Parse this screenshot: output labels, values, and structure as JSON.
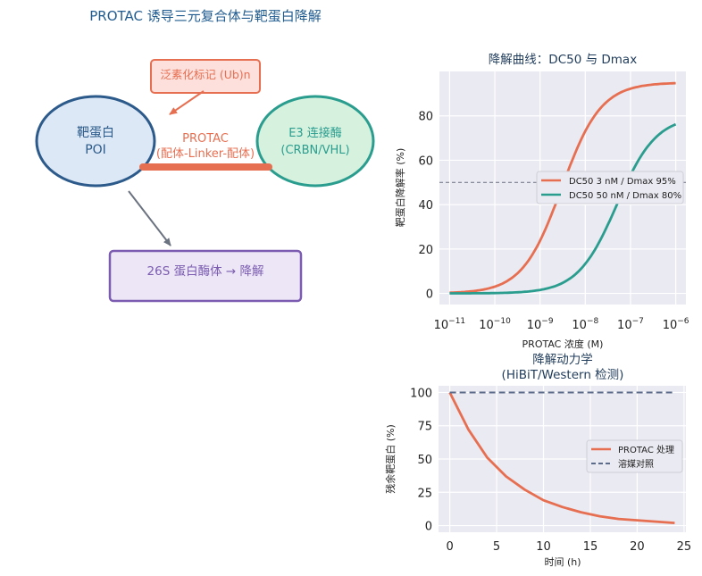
{
  "figure_title": "PROTAC 诱导三元复合体与靶蛋白降解",
  "diagram": {
    "ubiquitin_label": "泛素化标记 (Ub)n",
    "poi_label_1": "靶蛋白",
    "poi_label_2": "POI",
    "e3_label_1": "E3 连接酶",
    "e3_label_2": "(CRBN/VHL)",
    "protac_label_1": "PROTAC",
    "protac_label_2": "(配体-Linker-配体)",
    "proteasome_label": "26S 蛋白酶体 → 降解",
    "colors": {
      "poi_fill": "#dce8f5",
      "poi_stroke": "#2c5a8a",
      "e3_fill": "#d6f2df",
      "e3_stroke": "#2a9d8f",
      "protac": "#e76f51",
      "ub_fill": "#fde0dc",
      "ub_stroke": "#e76f51",
      "proteasome_fill": "#ede6f6",
      "proteasome_stroke": "#7b5cb0",
      "arrow_gray": "#6b7280"
    }
  },
  "chart_data": [
    {
      "type": "line",
      "title": "降解曲线：DC50 与 Dmax",
      "xlabel": "PROTAC 浓度 (M)",
      "ylabel": "靶蛋白降解率 (%)",
      "xscale": "log",
      "xlim": [
        1e-11,
        1e-06
      ],
      "ylim": [
        -5,
        100
      ],
      "xticks": [
        1e-11,
        1e-10,
        1e-09,
        1e-08,
        1e-07,
        1e-06
      ],
      "xtick_labels": [
        {
          "base": "10",
          "exp": "−11"
        },
        {
          "base": "10",
          "exp": "−10"
        },
        {
          "base": "10",
          "exp": "−9"
        },
        {
          "base": "10",
          "exp": "−8"
        },
        {
          "base": "10",
          "exp": "−7"
        },
        {
          "base": "10",
          "exp": "−6"
        }
      ],
      "yticks": [
        0,
        20,
        40,
        60,
        80
      ],
      "ytick_labels": [
        "0",
        "20",
        "40",
        "60",
        "80"
      ],
      "reference_line_y": 50,
      "grid": true,
      "legend_position": "center-right",
      "series": [
        {
          "name": "DC50 3 nM / Dmax 95%",
          "color": "#e76f51",
          "dc50": 3e-09,
          "dmax": 95,
          "hill": 1,
          "x": [
            1e-11,
            1e-10,
            1e-09,
            3e-09,
            1e-08,
            1e-07,
            1e-06
          ],
          "y": [
            0.3,
            3.1,
            23.8,
            47.5,
            73.1,
            92.2,
            94.7
          ]
        },
        {
          "name": "DC50 50 nM / Dmax 80%",
          "color": "#2a9d8f",
          "dc50": 5e-08,
          "dmax": 80,
          "hill": 1,
          "x": [
            1e-11,
            1e-10,
            1e-09,
            1e-08,
            5e-08,
            1e-07,
            1e-06
          ],
          "y": [
            0.0,
            0.2,
            1.6,
            13.3,
            40.0,
            53.3,
            76.2
          ]
        }
      ]
    },
    {
      "type": "line",
      "title_line_1": "降解动力学",
      "title_line_2": "(HiBiT/Western 检测)",
      "xlabel": "时间 (h)",
      "ylabel": "残余靶蛋白 (%)",
      "xlim": [
        -1.2,
        25.2
      ],
      "ylim": [
        -5,
        105
      ],
      "xticks": [
        0,
        5,
        10,
        15,
        20,
        25
      ],
      "xtick_labels": [
        "0",
        "5",
        "10",
        "15",
        "20",
        "25"
      ],
      "yticks": [
        0,
        25,
        50,
        75,
        100
      ],
      "ytick_labels": [
        "0",
        "25",
        "50",
        "75",
        "100"
      ],
      "grid": true,
      "legend_position": "center-right",
      "series": [
        {
          "name": "PROTAC 处理",
          "color": "#e76f51",
          "style": "solid",
          "x": [
            0,
            2,
            4,
            6,
            8,
            10,
            12,
            14,
            16,
            18,
            20,
            22,
            24
          ],
          "y": [
            100,
            72,
            51,
            37,
            27,
            19,
            14,
            10,
            7,
            5,
            4,
            3,
            2
          ]
        },
        {
          "name": "溶媒对照",
          "color": "#5c6b8a",
          "style": "dashed",
          "x": [
            0,
            24
          ],
          "y": [
            100,
            100
          ]
        }
      ]
    }
  ]
}
